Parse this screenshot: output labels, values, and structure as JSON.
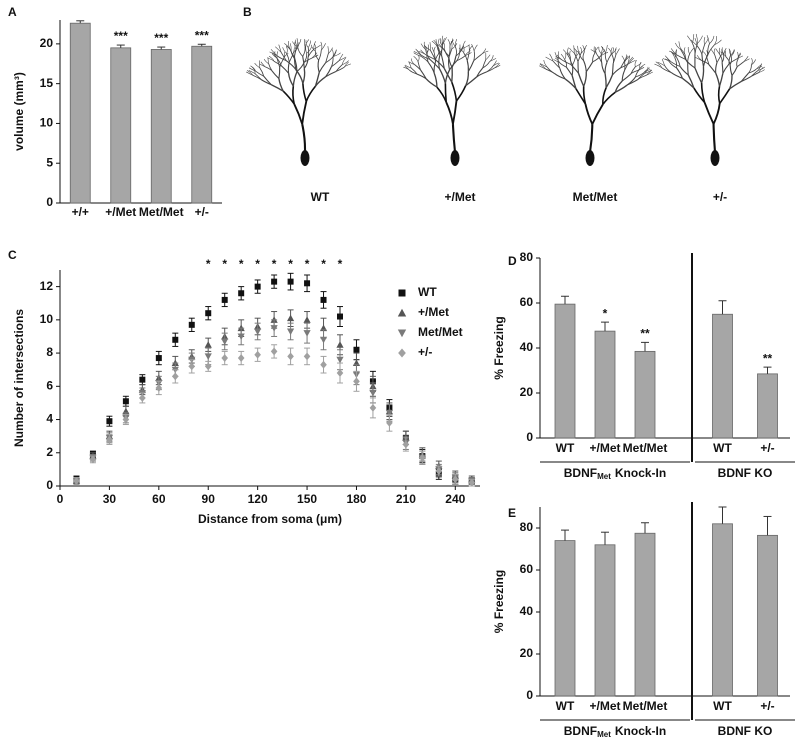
{
  "chart_data": [
    {
      "type": "bar",
      "panel": "A",
      "ylabel": "volume (mm³)",
      "categories": [
        "+/+",
        "+/Met",
        "Met/Met",
        "+/-"
      ],
      "values": [
        22.6,
        19.5,
        19.3,
        19.7
      ],
      "errors": [
        0.3,
        0.35,
        0.3,
        0.25
      ],
      "annotations": [
        null,
        "***",
        "***",
        "***"
      ],
      "ylim": [
        0,
        23
      ],
      "yticks": [
        0,
        5,
        10,
        15,
        20
      ],
      "color": "#a6a6a6"
    },
    {
      "type": "image",
      "panel": "B",
      "labels": [
        "WT",
        "+/Met",
        "Met/Met",
        "+/-"
      ]
    },
    {
      "type": "scatter",
      "panel": "C",
      "xlabel": "Distance from soma (μm)",
      "ylabel": "Number of intersections",
      "x": [
        10,
        20,
        30,
        40,
        50,
        60,
        70,
        80,
        90,
        100,
        110,
        120,
        130,
        140,
        150,
        160,
        170,
        180,
        190,
        200,
        210,
        220,
        230,
        240,
        250
      ],
      "series": [
        {
          "name": "WT",
          "color": "#111111",
          "marker": "square",
          "values": [
            0.4,
            1.9,
            3.9,
            5.1,
            6.4,
            7.7,
            8.8,
            9.7,
            10.4,
            11.2,
            11.6,
            12.0,
            12.3,
            12.3,
            12.2,
            11.2,
            10.2,
            8.2,
            6.3,
            4.7,
            2.9,
            1.8,
            0.7,
            0.4,
            0.3
          ],
          "errors": [
            0.2,
            0.2,
            0.3,
            0.3,
            0.3,
            0.4,
            0.4,
            0.4,
            0.4,
            0.4,
            0.4,
            0.4,
            0.4,
            0.5,
            0.5,
            0.5,
            0.6,
            0.6,
            0.6,
            0.5,
            0.4,
            0.4,
            0.3,
            0.3,
            0.2
          ]
        },
        {
          "name": "+/Met",
          "color": "#555555",
          "marker": "triangle",
          "values": [
            0.3,
            1.8,
            3.0,
            4.5,
            5.8,
            6.5,
            7.4,
            7.8,
            8.5,
            9.0,
            9.5,
            9.6,
            10.0,
            10.1,
            10.0,
            9.5,
            8.5,
            7.4,
            6.0,
            4.5,
            2.9,
            1.9,
            1.2,
            0.6,
            0.4
          ],
          "errors": [
            0.2,
            0.2,
            0.3,
            0.3,
            0.3,
            0.4,
            0.4,
            0.4,
            0.4,
            0.5,
            0.5,
            0.5,
            0.5,
            0.5,
            0.5,
            0.6,
            0.6,
            0.6,
            0.6,
            0.5,
            0.4,
            0.4,
            0.3,
            0.3,
            0.2
          ]
        },
        {
          "name": "Met/Met",
          "color": "#7a7a7a",
          "marker": "triangle-down",
          "values": [
            0.3,
            1.7,
            2.9,
            4.1,
            5.6,
            6.2,
            7.0,
            7.6,
            7.8,
            8.7,
            9.0,
            9.3,
            9.5,
            9.3,
            9.2,
            8.8,
            7.6,
            6.7,
            5.6,
            4.4,
            2.6,
            1.7,
            1.0,
            0.5,
            0.3
          ],
          "errors": [
            0.2,
            0.2,
            0.3,
            0.3,
            0.3,
            0.4,
            0.4,
            0.4,
            0.5,
            0.5,
            0.5,
            0.5,
            0.5,
            0.5,
            0.6,
            0.6,
            0.6,
            0.6,
            0.6,
            0.5,
            0.4,
            0.4,
            0.3,
            0.3,
            0.2
          ]
        },
        {
          "name": "+/-",
          "color": "#a0a0a0",
          "marker": "diamond",
          "values": [
            0.3,
            1.6,
            2.8,
            4.0,
            5.3,
            5.9,
            6.6,
            7.2,
            7.2,
            7.7,
            7.7,
            7.9,
            8.1,
            7.8,
            7.8,
            7.3,
            6.8,
            6.3,
            4.7,
            3.8,
            2.5,
            1.7,
            0.9,
            0.4,
            0.2
          ],
          "errors": [
            0.2,
            0.2,
            0.3,
            0.3,
            0.3,
            0.4,
            0.4,
            0.4,
            0.3,
            0.4,
            0.4,
            0.4,
            0.4,
            0.5,
            0.5,
            0.5,
            0.6,
            0.6,
            0.6,
            0.5,
            0.4,
            0.4,
            0.3,
            0.3,
            0.2
          ]
        }
      ],
      "annotations": {
        "x": [
          90,
          100,
          110,
          120,
          130,
          140,
          150,
          160,
          170
        ],
        "text": "*"
      },
      "xlim": [
        0,
        255
      ],
      "xticks": [
        0,
        30,
        60,
        90,
        120,
        150,
        180,
        210,
        240
      ],
      "ylim": [
        0,
        13
      ],
      "yticks": [
        0,
        2,
        4,
        6,
        8,
        10,
        12
      ]
    },
    {
      "type": "grouped_bar",
      "panel": "D",
      "ylabel": "% Freezing",
      "color": "#a6a6a6",
      "ylim": [
        0,
        80
      ],
      "yticks": [
        0,
        20,
        40,
        60,
        80
      ],
      "groups": [
        {
          "label": {
            "text": "BDNF",
            "sub": "Met",
            "rest": "Knock-In"
          },
          "categories": [
            "WT",
            "+/Met",
            "Met/Met"
          ],
          "values": [
            59.5,
            47.5,
            38.5
          ],
          "errors": [
            3.5,
            4,
            4
          ],
          "annotations": [
            null,
            "*",
            "**"
          ]
        },
        {
          "label": {
            "text": "BDNF KO"
          },
          "categories": [
            "WT",
            "+/-"
          ],
          "values": [
            55,
            28.5
          ],
          "errors": [
            6,
            3
          ],
          "annotations": [
            null,
            "**"
          ]
        }
      ]
    },
    {
      "type": "grouped_bar",
      "panel": "E",
      "ylabel": "% Freezing",
      "color": "#a6a6a6",
      "ylim": [
        0,
        90
      ],
      "yticks": [
        0,
        20,
        40,
        60,
        80
      ],
      "groups": [
        {
          "label": {
            "text": "BDNF",
            "sub": "Met",
            "rest": "Knock-In"
          },
          "categories": [
            "WT",
            "+/Met",
            "Met/Met"
          ],
          "values": [
            74,
            72,
            77.5
          ],
          "errors": [
            5,
            6,
            5
          ]
        },
        {
          "label": {
            "text": "BDNF KO"
          },
          "categories": [
            "WT",
            "+/-"
          ],
          "values": [
            82,
            76.5
          ],
          "errors": [
            8,
            9
          ]
        }
      ]
    }
  ]
}
